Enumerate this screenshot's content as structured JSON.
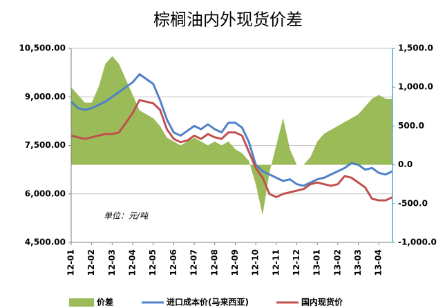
{
  "chart_data": {
    "type": "line",
    "title": "棕榈油内外现货价差",
    "annotation": "单位：元/吨",
    "categories": [
      "12-01",
      null,
      null,
      "12-02",
      null,
      null,
      "12-03",
      null,
      null,
      "12-04",
      null,
      null,
      "12-05",
      null,
      null,
      "12-06",
      null,
      null,
      "12-07",
      null,
      null,
      "12-08",
      null,
      null,
      "12-09",
      null,
      null,
      "12-10",
      null,
      null,
      "12-11",
      null,
      null,
      "12-12",
      null,
      null,
      "13-01",
      null,
      null,
      "13-02",
      null,
      null,
      "13-03",
      null,
      null,
      "13-04",
      null,
      null
    ],
    "series": [
      {
        "name": "价差",
        "color": "#9bbb59",
        "kind": "area",
        "axis": "y2",
        "values": [
          1000,
          900,
          800,
          800,
          1000,
          1300,
          1400,
          1300,
          1100,
          900,
          700,
          650,
          600,
          500,
          350,
          300,
          250,
          300,
          350,
          300,
          250,
          300,
          250,
          300,
          200,
          150,
          50,
          -250,
          -650,
          -100,
          250,
          600,
          200,
          0,
          0,
          100,
          300,
          400,
          450,
          500,
          550,
          600,
          650,
          750,
          850,
          900,
          850,
          850
        ]
      },
      {
        "name": "进口成本价(马来西亚)",
        "color": "#4f81c7",
        "kind": "line",
        "values": [
          8850,
          8650,
          8600,
          8650,
          8750,
          8850,
          9000,
          9150,
          9300,
          9450,
          9700,
          9550,
          9400,
          8900,
          8300,
          7900,
          7800,
          7950,
          8100,
          8000,
          8150,
          8000,
          7900,
          8200,
          8200,
          8050,
          7600,
          6900,
          6700,
          6600,
          6500,
          6400,
          6450,
          6300,
          6250,
          6350,
          6450,
          6500,
          6600,
          6700,
          6800,
          6950,
          6900,
          6750,
          6800,
          6650,
          6600,
          6700
        ]
      },
      {
        "name": "国内现货价",
        "color": "#c0504d",
        "kind": "line",
        "values": [
          7800,
          7750,
          7700,
          7750,
          7800,
          7850,
          7850,
          7900,
          8200,
          8500,
          8900,
          8850,
          8800,
          8600,
          8000,
          7700,
          7600,
          7650,
          7800,
          7700,
          7850,
          7750,
          7700,
          7900,
          7900,
          7800,
          7300,
          6800,
          6500,
          6000,
          5900,
          6000,
          6050,
          6100,
          6150,
          6300,
          6350,
          6300,
          6250,
          6300,
          6550,
          6500,
          6350,
          6200,
          5850,
          5800,
          5800,
          5900
        ]
      }
    ],
    "ylim": [
      4500,
      10500
    ],
    "yticks": [
      {
        "value": 4500,
        "label": "4,500.00"
      },
      {
        "value": 6000,
        "label": "6,000.00"
      },
      {
        "value": 7500,
        "label": "7,500.00"
      },
      {
        "value": 9000,
        "label": "9,000.00"
      },
      {
        "value": 10500,
        "label": "10,500.00"
      }
    ],
    "y2lim": [
      -1000,
      1500
    ],
    "y2ticks": [
      {
        "value": -1000,
        "label": "-1,000.0"
      },
      {
        "value": -500,
        "label": "-500.0"
      },
      {
        "value": 0,
        "label": "0.0"
      },
      {
        "value": 500,
        "label": "500.0"
      },
      {
        "value": 1000,
        "label": "1,000.0"
      },
      {
        "value": 1500,
        "label": "1,500.0"
      }
    ],
    "grid": true
  }
}
